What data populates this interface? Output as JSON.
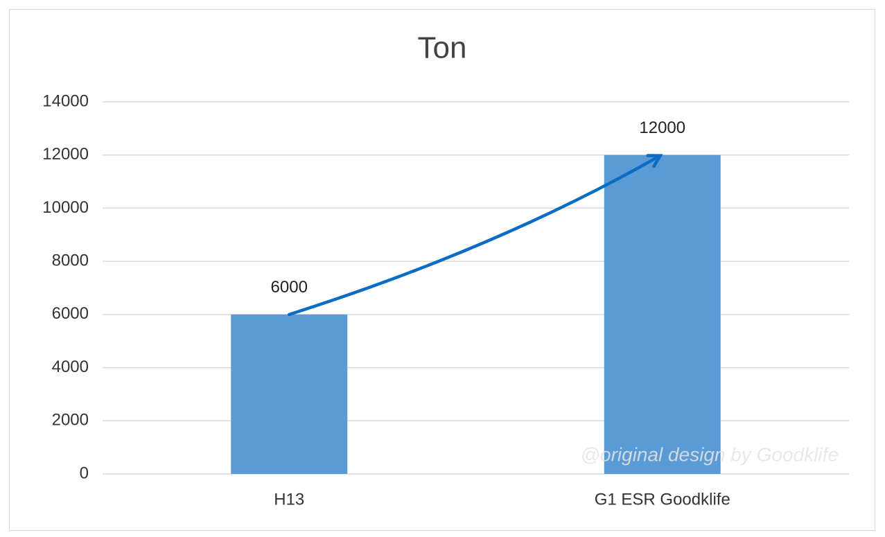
{
  "chart_data": {
    "type": "bar",
    "title": "Ton",
    "categories": [
      "H13",
      "G1 ESR Goodklife"
    ],
    "values": [
      6000,
      12000
    ],
    "color": "#5b9bd5",
    "ylim": [
      0,
      14000
    ],
    "yticks": [
      0,
      2000,
      4000,
      6000,
      8000,
      10000,
      12000,
      14000
    ],
    "grid": true,
    "annotation": "@original design by Goodklife"
  }
}
